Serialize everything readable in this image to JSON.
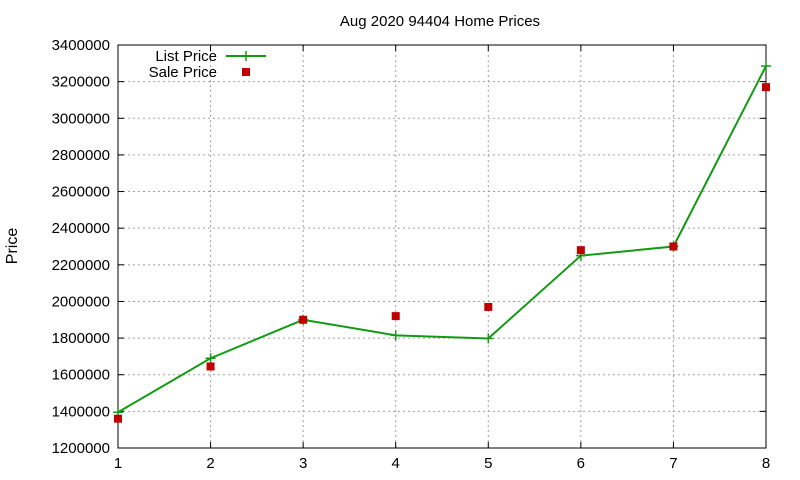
{
  "chart_data": {
    "type": "line",
    "title": "Aug 2020 94404 Home Prices",
    "xlabel": "",
    "ylabel": "Price",
    "x": [
      1,
      2,
      3,
      4,
      5,
      6,
      7,
      8
    ],
    "xlim": [
      1,
      8
    ],
    "ylim": [
      1200000,
      3400000
    ],
    "xticks": [
      "1",
      "2",
      "3",
      "4",
      "5",
      "6",
      "7",
      "8"
    ],
    "yticks": [
      "1200000",
      "1400000",
      "1600000",
      "1800000",
      "2000000",
      "2200000",
      "2400000",
      "2600000",
      "2800000",
      "3000000",
      "3200000",
      "3400000"
    ],
    "grid": true,
    "legend": "top-left",
    "series": [
      {
        "name": "List Price",
        "type": "line",
        "color": "#129b12",
        "marker": "plus",
        "values": [
          1395000,
          1690000,
          1900000,
          1815000,
          1798000,
          2250000,
          2300000,
          3285000
        ]
      },
      {
        "name": "Sale Price",
        "type": "scatter",
        "color": "#c00000",
        "marker": "square",
        "values": [
          1360000,
          1645000,
          1900000,
          1920000,
          1970000,
          2280000,
          2300000,
          3170000
        ]
      }
    ]
  }
}
